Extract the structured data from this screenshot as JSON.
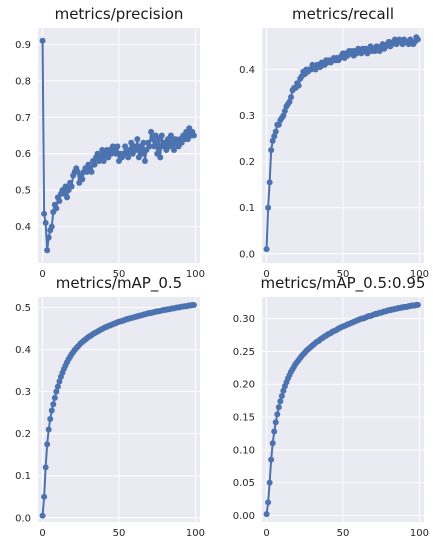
{
  "chart_data": [
    {
      "type": "line",
      "title": "metrics/precision",
      "xlabel": "",
      "ylabel": "",
      "xlim": [
        -3,
        103
      ],
      "ylim": [
        0.3,
        0.945
      ],
      "xticks": [
        0,
        50,
        100
      ],
      "yticks": [
        0.4,
        0.5,
        0.6,
        0.7,
        0.8,
        0.9
      ],
      "grid": true,
      "color": "#4c72b0",
      "series": [
        {
          "x": [
            0,
            1,
            2,
            3,
            4,
            5,
            6,
            7,
            8,
            9,
            10,
            11,
            12,
            13,
            14,
            15,
            16,
            17,
            18,
            19,
            20,
            21,
            22,
            23,
            24,
            25,
            26,
            27,
            28,
            29,
            30,
            31,
            32,
            33,
            34,
            35,
            36,
            37,
            38,
            39,
            40,
            41,
            42,
            43,
            44,
            45,
            46,
            47,
            48,
            49,
            50,
            51,
            52,
            53,
            54,
            55,
            56,
            57,
            58,
            59,
            60,
            61,
            62,
            63,
            64,
            65,
            66,
            67,
            68,
            69,
            70,
            71,
            72,
            73,
            74,
            75,
            76,
            77,
            78,
            79,
            80,
            81,
            82,
            83,
            84,
            85,
            86,
            87,
            88,
            89,
            90,
            91,
            92,
            93,
            94,
            95,
            96,
            97,
            98,
            99
          ],
          "y": [
            0.91,
            0.435,
            0.41,
            0.335,
            0.37,
            0.39,
            0.4,
            0.44,
            0.46,
            0.45,
            0.48,
            0.47,
            0.49,
            0.5,
            0.49,
            0.51,
            0.48,
            0.5,
            0.52,
            0.51,
            0.54,
            0.55,
            0.56,
            0.55,
            0.52,
            0.54,
            0.53,
            0.55,
            0.56,
            0.55,
            0.57,
            0.56,
            0.55,
            0.58,
            0.57,
            0.59,
            0.6,
            0.58,
            0.59,
            0.61,
            0.58,
            0.6,
            0.61,
            0.59,
            0.61,
            0.6,
            0.62,
            0.61,
            0.6,
            0.62,
            0.58,
            0.6,
            0.59,
            0.6,
            0.62,
            0.6,
            0.59,
            0.61,
            0.63,
            0.6,
            0.62,
            0.61,
            0.64,
            0.59,
            0.62,
            0.6,
            0.63,
            0.58,
            0.61,
            0.63,
            0.62,
            0.66,
            0.64,
            0.62,
            0.65,
            0.6,
            0.64,
            0.59,
            0.65,
            0.62,
            0.63,
            0.61,
            0.64,
            0.62,
            0.65,
            0.63,
            0.61,
            0.64,
            0.63,
            0.62,
            0.64,
            0.63,
            0.65,
            0.64,
            0.66,
            0.64,
            0.67,
            0.65,
            0.66,
            0.65
          ]
        }
      ]
    },
    {
      "type": "line",
      "title": "metrics/recall",
      "xlabel": "",
      "ylabel": "",
      "xlim": [
        -3,
        103
      ],
      "ylim": [
        -0.02,
        0.49
      ],
      "xticks": [
        0,
        50,
        100
      ],
      "yticks": [
        0.0,
        0.1,
        0.2,
        0.3,
        0.4
      ],
      "grid": true,
      "color": "#4c72b0",
      "series": [
        {
          "x": [
            0,
            1,
            2,
            3,
            4,
            5,
            6,
            7,
            8,
            9,
            10,
            11,
            12,
            13,
            14,
            15,
            16,
            17,
            18,
            19,
            20,
            21,
            22,
            23,
            24,
            25,
            26,
            27,
            28,
            29,
            30,
            31,
            32,
            33,
            34,
            35,
            36,
            37,
            38,
            39,
            40,
            41,
            42,
            43,
            44,
            45,
            46,
            47,
            48,
            49,
            50,
            51,
            52,
            53,
            54,
            55,
            56,
            57,
            58,
            59,
            60,
            61,
            62,
            63,
            64,
            65,
            66,
            67,
            68,
            69,
            70,
            71,
            72,
            73,
            74,
            75,
            76,
            77,
            78,
            79,
            80,
            81,
            82,
            83,
            84,
            85,
            86,
            87,
            88,
            89,
            90,
            91,
            92,
            93,
            94,
            95,
            96,
            97,
            98,
            99
          ],
          "y": [
            0.01,
            0.1,
            0.155,
            0.225,
            0.245,
            0.255,
            0.265,
            0.28,
            0.28,
            0.29,
            0.295,
            0.3,
            0.31,
            0.32,
            0.325,
            0.33,
            0.34,
            0.355,
            0.36,
            0.36,
            0.37,
            0.365,
            0.38,
            0.385,
            0.395,
            0.39,
            0.4,
            0.395,
            0.4,
            0.4,
            0.41,
            0.405,
            0.4,
            0.41,
            0.41,
            0.405,
            0.415,
            0.41,
            0.41,
            0.42,
            0.415,
            0.42,
            0.415,
            0.42,
            0.425,
            0.42,
            0.425,
            0.42,
            0.425,
            0.43,
            0.435,
            0.425,
            0.435,
            0.43,
            0.44,
            0.435,
            0.44,
            0.43,
            0.44,
            0.435,
            0.445,
            0.44,
            0.435,
            0.445,
            0.44,
            0.445,
            0.435,
            0.44,
            0.45,
            0.44,
            0.445,
            0.44,
            0.45,
            0.445,
            0.44,
            0.45,
            0.455,
            0.445,
            0.45,
            0.455,
            0.46,
            0.45,
            0.455,
            0.46,
            0.465,
            0.455,
            0.46,
            0.465,
            0.46,
            0.455,
            0.465,
            0.46,
            0.46,
            0.455,
            0.465,
            0.46,
            0.455,
            0.46,
            0.47,
            0.465
          ]
        }
      ]
    },
    {
      "type": "line",
      "title": "metrics/mAP_0.5",
      "xlabel": "",
      "ylabel": "",
      "xlim": [
        -3,
        103
      ],
      "ylim": [
        -0.01,
        0.525
      ],
      "xticks": [
        0,
        50,
        100
      ],
      "yticks": [
        0.0,
        0.1,
        0.2,
        0.3,
        0.4,
        0.5
      ],
      "grid": true,
      "color": "#4c72b0",
      "series": [
        {
          "x": [
            0,
            1,
            2,
            3,
            4,
            5,
            6,
            7,
            8,
            9,
            10,
            11,
            12,
            13,
            14,
            15,
            16,
            17,
            18,
            19,
            20,
            21,
            22,
            23,
            24,
            25,
            26,
            27,
            28,
            29,
            30,
            31,
            32,
            33,
            34,
            35,
            36,
            37,
            38,
            39,
            40,
            41,
            42,
            43,
            44,
            45,
            46,
            47,
            48,
            49,
            50,
            51,
            52,
            53,
            54,
            55,
            56,
            57,
            58,
            59,
            60,
            61,
            62,
            63,
            64,
            65,
            66,
            67,
            68,
            69,
            70,
            71,
            72,
            73,
            74,
            75,
            76,
            77,
            78,
            79,
            80,
            81,
            82,
            83,
            84,
            85,
            86,
            87,
            88,
            89,
            90,
            91,
            92,
            93,
            94,
            95,
            96,
            97,
            98,
            99
          ],
          "y": [
            0.005,
            0.05,
            0.12,
            0.175,
            0.21,
            0.235,
            0.255,
            0.27,
            0.285,
            0.3,
            0.312,
            0.324,
            0.335,
            0.345,
            0.354,
            0.362,
            0.37,
            0.377,
            0.383,
            0.389,
            0.394,
            0.399,
            0.403,
            0.407,
            0.411,
            0.415,
            0.418,
            0.421,
            0.424,
            0.427,
            0.43,
            0.432,
            0.434,
            0.437,
            0.439,
            0.441,
            0.443,
            0.445,
            0.447,
            0.449,
            0.451,
            0.453,
            0.454,
            0.456,
            0.457,
            0.459,
            0.46,
            0.462,
            0.463,
            0.465,
            0.466,
            0.467,
            0.468,
            0.469,
            0.471,
            0.472,
            0.473,
            0.474,
            0.475,
            0.476,
            0.477,
            0.478,
            0.479,
            0.48,
            0.481,
            0.482,
            0.483,
            0.484,
            0.485,
            0.486,
            0.487,
            0.487,
            0.488,
            0.489,
            0.49,
            0.491,
            0.491,
            0.492,
            0.493,
            0.494,
            0.494,
            0.495,
            0.496,
            0.496,
            0.497,
            0.498,
            0.498,
            0.499,
            0.5,
            0.5,
            0.501,
            0.502,
            0.502,
            0.503,
            0.503,
            0.504,
            0.505,
            0.505,
            0.506,
            0.506
          ]
        }
      ]
    },
    {
      "type": "line",
      "title": "metrics/mAP_0.5:0.95",
      "xlabel": "",
      "ylabel": "",
      "xlim": [
        -3,
        103
      ],
      "ylim": [
        -0.01,
        0.333
      ],
      "xticks": [
        0,
        50,
        100
      ],
      "yticks": [
        0.0,
        0.05,
        0.1,
        0.15,
        0.2,
        0.25,
        0.3
      ],
      "grid": true,
      "color": "#4c72b0",
      "series": [
        {
          "x": [
            0,
            1,
            2,
            3,
            4,
            5,
            6,
            7,
            8,
            9,
            10,
            11,
            12,
            13,
            14,
            15,
            16,
            17,
            18,
            19,
            20,
            21,
            22,
            23,
            24,
            25,
            26,
            27,
            28,
            29,
            30,
            31,
            32,
            33,
            34,
            35,
            36,
            37,
            38,
            39,
            40,
            41,
            42,
            43,
            44,
            45,
            46,
            47,
            48,
            49,
            50,
            51,
            52,
            53,
            54,
            55,
            56,
            57,
            58,
            59,
            60,
            61,
            62,
            63,
            64,
            65,
            66,
            67,
            68,
            69,
            70,
            71,
            72,
            73,
            74,
            75,
            76,
            77,
            78,
            79,
            80,
            81,
            82,
            83,
            84,
            85,
            86,
            87,
            88,
            89,
            90,
            91,
            92,
            93,
            94,
            95,
            96,
            97,
            98,
            99
          ],
          "y": [
            0.002,
            0.02,
            0.05,
            0.085,
            0.11,
            0.128,
            0.142,
            0.154,
            0.165,
            0.174,
            0.182,
            0.19,
            0.197,
            0.203,
            0.209,
            0.214,
            0.219,
            0.223,
            0.227,
            0.231,
            0.234,
            0.237,
            0.24,
            0.243,
            0.246,
            0.248,
            0.251,
            0.253,
            0.255,
            0.257,
            0.259,
            0.261,
            0.263,
            0.265,
            0.266,
            0.268,
            0.27,
            0.271,
            0.273,
            0.274,
            0.276,
            0.277,
            0.278,
            0.28,
            0.281,
            0.282,
            0.283,
            0.285,
            0.286,
            0.287,
            0.288,
            0.289,
            0.29,
            0.291,
            0.292,
            0.293,
            0.294,
            0.295,
            0.296,
            0.297,
            0.298,
            0.299,
            0.3,
            0.3,
            0.301,
            0.302,
            0.303,
            0.304,
            0.304,
            0.305,
            0.306,
            0.307,
            0.307,
            0.308,
            0.309,
            0.309,
            0.31,
            0.311,
            0.311,
            0.312,
            0.313,
            0.313,
            0.314,
            0.314,
            0.315,
            0.315,
            0.316,
            0.316,
            0.317,
            0.317,
            0.318,
            0.318,
            0.318,
            0.319,
            0.319,
            0.32,
            0.32,
            0.32,
            0.321,
            0.321
          ]
        }
      ]
    }
  ]
}
